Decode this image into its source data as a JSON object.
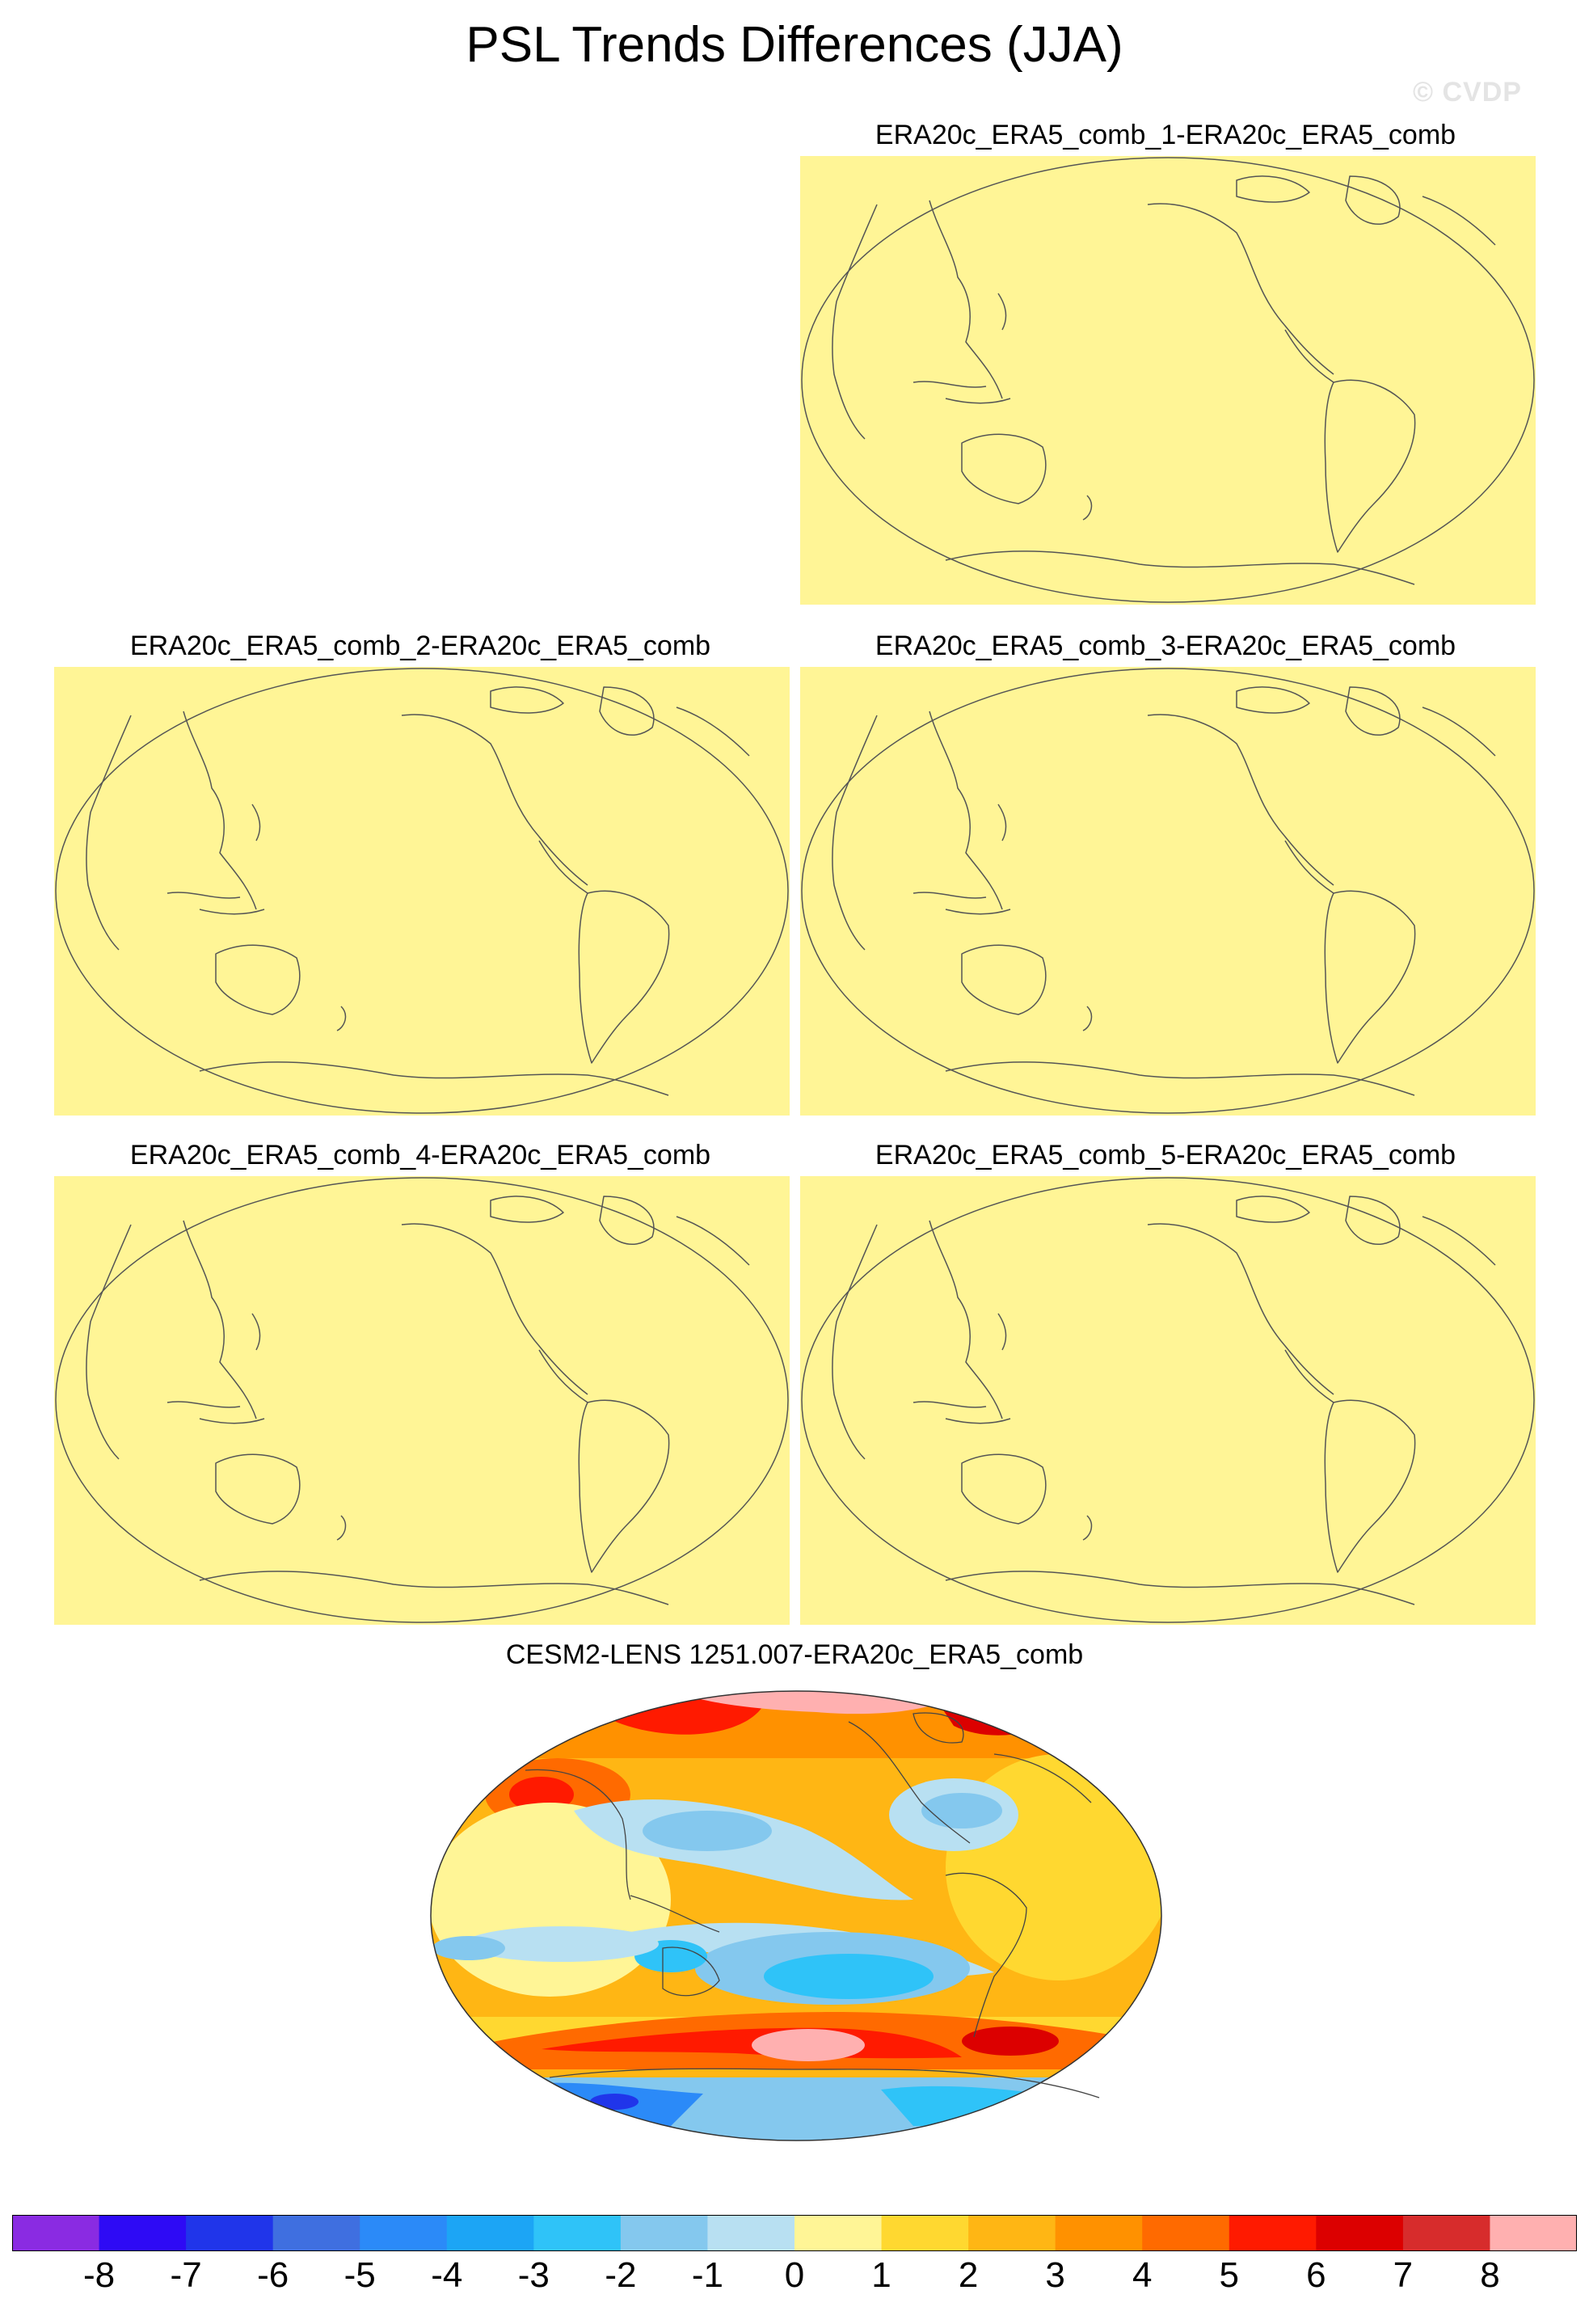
{
  "title": "PSL Trends Differences (JJA)",
  "credit": "© CVDP",
  "colors": {
    "zero_fill": "#fff596",
    "coast": "#555555",
    "levels": [
      "#8a2be2",
      "#2e0af5",
      "#2035ea",
      "#3f6fe0",
      "#2b8af8",
      "#1ca5f5",
      "#2fc3f8",
      "#84c8ee",
      "#b8e0f2",
      "#fff596",
      "#ffd830",
      "#ffb614",
      "#ff9100",
      "#ff6a00",
      "#ff1a00",
      "#dc0000",
      "#d72c2c",
      "#ffb0b0"
    ]
  },
  "panels": [
    {
      "name": "ERA20c_ERA5_comb_1-ERA20c_ERA5_comb",
      "field": "uniform zero"
    },
    {
      "name": "ERA20c_ERA5_comb_2-ERA20c_ERA5_comb",
      "field": "uniform zero"
    },
    {
      "name": "ERA20c_ERA5_comb_3-ERA20c_ERA5_comb",
      "field": "uniform zero"
    },
    {
      "name": "ERA20c_ERA5_comb_4-ERA20c_ERA5_comb",
      "field": "uniform zero"
    },
    {
      "name": "ERA20c_ERA5_comb_5-ERA20c_ERA5_comb",
      "field": "uniform zero"
    }
  ],
  "big_panel": {
    "name": "CESM2-LENS 1251.007-ERA20c_ERA5_comb",
    "field": "trend difference map"
  },
  "colorbar": {
    "labels": [
      "-8",
      "-7",
      "-6",
      "-5",
      "-4",
      "-3",
      "-2",
      "-1",
      "0",
      "1",
      "2",
      "3",
      "4",
      "5",
      "6",
      "7",
      "8"
    ]
  }
}
